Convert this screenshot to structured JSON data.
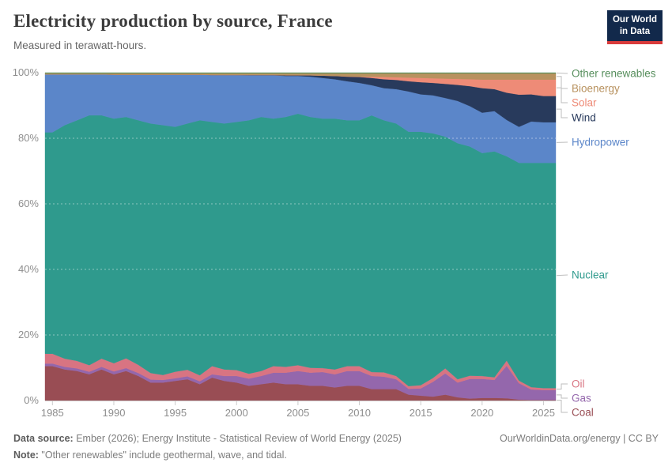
{
  "header": {
    "title": "Electricity production by source, France",
    "subtitle": "Measured in terawatt-hours.",
    "logo_line1": "Our World",
    "logo_line2": "in Data"
  },
  "chart_data": {
    "type": "area",
    "stacked": true,
    "normalized": "percent_share_of_total",
    "title": "Electricity production by source, France",
    "xlabel": "",
    "ylabel": "",
    "ylim": [
      0,
      100
    ],
    "grid": "dashed horizontal at 20/40/60/80%",
    "legend_position": "right",
    "x_range": [
      1985,
      2025
    ],
    "xticks": [
      1985,
      1990,
      1995,
      2000,
      2005,
      2010,
      2015,
      2020,
      2025
    ],
    "yticks": [
      {
        "value": 0,
        "label": "0%"
      },
      {
        "value": 20,
        "label": "20%"
      },
      {
        "value": 40,
        "label": "40%"
      },
      {
        "value": 60,
        "label": "60%"
      },
      {
        "value": 80,
        "label": "80%"
      },
      {
        "value": 100,
        "label": "100%"
      }
    ],
    "years": [
      1985,
      1986,
      1987,
      1988,
      1989,
      1990,
      1991,
      1992,
      1993,
      1994,
      1995,
      1996,
      1997,
      1998,
      1999,
      2000,
      2001,
      2002,
      2003,
      2004,
      2005,
      2006,
      2007,
      2008,
      2009,
      2010,
      2011,
      2012,
      2013,
      2014,
      2015,
      2016,
      2017,
      2018,
      2019,
      2020,
      2021,
      2022,
      2023,
      2024,
      2025
    ],
    "series": [
      {
        "name": "Coal",
        "color": "#994d54",
        "values": [
          10.5,
          9.5,
          9.0,
          8.0,
          9.5,
          8.0,
          9.0,
          7.5,
          5.5,
          5.5,
          6.0,
          6.5,
          5.0,
          7.0,
          6.0,
          5.5,
          4.5,
          5.0,
          5.5,
          5.0,
          5.0,
          4.5,
          4.5,
          4.0,
          4.5,
          4.5,
          3.5,
          3.5,
          3.5,
          1.8,
          1.5,
          1.2,
          1.8,
          1.0,
          0.6,
          0.8,
          0.8,
          0.7,
          0.3,
          0.2,
          0.2
        ]
      },
      {
        "name": "Gas",
        "color": "#9467ac",
        "values": [
          0.8,
          0.8,
          0.8,
          0.8,
          0.8,
          0.9,
          0.9,
          0.9,
          0.9,
          0.8,
          0.8,
          0.9,
          0.9,
          1.0,
          1.5,
          2.0,
          2.2,
          2.5,
          3.0,
          3.5,
          4.0,
          4.0,
          4.2,
          4.0,
          4.5,
          4.5,
          4.0,
          3.8,
          3.0,
          1.8,
          2.2,
          4.5,
          6.5,
          4.5,
          6.0,
          5.8,
          5.5,
          9.9,
          5.0,
          3.2,
          3.0
        ]
      },
      {
        "name": "Oil",
        "color": "#d87482",
        "values": [
          3.0,
          2.5,
          2.3,
          2.0,
          2.5,
          2.5,
          3.0,
          2.5,
          2.0,
          1.5,
          2.0,
          2.0,
          1.8,
          2.5,
          2.0,
          1.8,
          1.5,
          1.5,
          2.0,
          1.8,
          1.8,
          1.5,
          1.2,
          1.5,
          1.5,
          1.5,
          1.2,
          1.3,
          1.0,
          0.8,
          1.0,
          1.2,
          1.5,
          1.0,
          1.0,
          0.9,
          0.8,
          1.6,
          0.8,
          0.7,
          0.6
        ]
      },
      {
        "name": "Nuclear",
        "color": "#2f9a8d",
        "values": [
          67.5,
          71.2,
          73.4,
          76.2,
          74.2,
          74.6,
          73.6,
          74.6,
          76.1,
          76.2,
          74.7,
          75.1,
          77.8,
          74.5,
          75.0,
          75.7,
          77.3,
          77.5,
          75.5,
          76.2,
          76.7,
          76.5,
          76.1,
          76.5,
          75.0,
          75.0,
          78.3,
          76.9,
          77.0,
          77.6,
          77.3,
          74.6,
          70.7,
          72.0,
          69.9,
          68.0,
          68.9,
          62.3,
          66.4,
          68.4,
          68.7
        ]
      },
      {
        "name": "Hydropower",
        "color": "#5b86c9",
        "values": [
          17.7,
          15.5,
          14.0,
          12.5,
          12.5,
          13.4,
          12.9,
          13.9,
          14.9,
          15.4,
          15.9,
          14.9,
          13.9,
          14.3,
          14.8,
          14.3,
          13.7,
          12.7,
          13.2,
          12.5,
          11.5,
          12.3,
          12.4,
          12.0,
          11.9,
          11.4,
          9.2,
          9.8,
          10.5,
          12.3,
          11.4,
          11.6,
          11.8,
          12.9,
          12.3,
          12.3,
          12.3,
          11.1,
          11.0,
          12.6,
          12.4
        ]
      },
      {
        "name": "Wind",
        "color": "#283a5c",
        "values": [
          0,
          0,
          0,
          0,
          0,
          0,
          0,
          0,
          0,
          0,
          0,
          0,
          0,
          0,
          0,
          0,
          0.1,
          0.1,
          0.1,
          0.2,
          0.2,
          0.4,
          0.7,
          1.0,
          1.4,
          1.8,
          2.2,
          2.7,
          2.8,
          3.1,
          3.7,
          3.8,
          4.3,
          4.9,
          6.1,
          7.5,
          6.7,
          8.3,
          9.8,
          8.3,
          8.0
        ]
      },
      {
        "name": "Solar",
        "color": "#ee8b77",
        "values": [
          0,
          0,
          0,
          0,
          0,
          0,
          0,
          0,
          0,
          0,
          0,
          0,
          0,
          0,
          0,
          0,
          0,
          0,
          0,
          0,
          0,
          0,
          0,
          0,
          0.1,
          0.1,
          0.4,
          0.7,
          0.8,
          1.1,
          1.3,
          1.4,
          1.6,
          1.8,
          2.1,
          2.6,
          2.9,
          4.0,
          4.6,
          4.5,
          5.0
        ]
      },
      {
        "name": "Bioenergy",
        "color": "#b8925f",
        "values": [
          0.3,
          0.3,
          0.3,
          0.3,
          0.3,
          0.4,
          0.4,
          0.4,
          0.4,
          0.4,
          0.4,
          0.4,
          0.4,
          0.5,
          0.5,
          0.5,
          0.5,
          0.5,
          0.5,
          0.6,
          0.6,
          0.6,
          0.7,
          0.8,
          0.9,
          1.0,
          1.0,
          1.1,
          1.2,
          1.3,
          1.4,
          1.5,
          1.6,
          1.7,
          1.8,
          1.9,
          1.9,
          1.9,
          1.9,
          1.9,
          1.9
        ]
      },
      {
        "name": "Other renewables",
        "color": "#568e5c",
        "values": [
          0.2,
          0.2,
          0.2,
          0.2,
          0.2,
          0.2,
          0.2,
          0.2,
          0.2,
          0.2,
          0.2,
          0.2,
          0.2,
          0.2,
          0.2,
          0.2,
          0.2,
          0.2,
          0.2,
          0.2,
          0.2,
          0.2,
          0.2,
          0.2,
          0.2,
          0.2,
          0.2,
          0.2,
          0.2,
          0.2,
          0.2,
          0.2,
          0.2,
          0.2,
          0.2,
          0.2,
          0.2,
          0.2,
          0.2,
          0.2,
          0.2
        ]
      }
    ]
  },
  "colors": {
    "axis_text": "#8e8e8e",
    "axis_line": "#cccccc",
    "connector": "#bdbdbd",
    "logo_bg": "#12294b",
    "logo_underline": "#d93b3b"
  },
  "footer": {
    "source_label": "Data source:",
    "source_text": " Ember (2026); Energy Institute - Statistical Review of World Energy (2025)",
    "rights": "OurWorldinData.org/energy | CC BY",
    "note_label": "Note:",
    "note_text": " \"Other renewables\" include geothermal, wave, and tidal."
  }
}
